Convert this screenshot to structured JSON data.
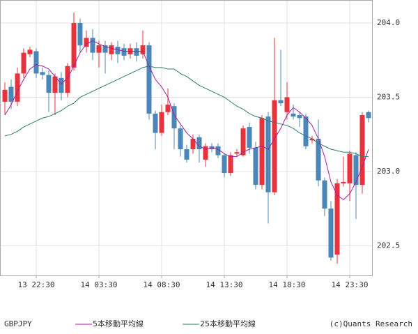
{
  "chart_data": {
    "type": "candlestick",
    "symbol": "GBPJPY",
    "credit": "(c)Quants Research",
    "categories": [
      null,
      null,
      null,
      null,
      null,
      "13 22:30",
      null,
      null,
      null,
      null,
      null,
      null,
      null,
      null,
      null,
      "14 03:30",
      null,
      null,
      null,
      null,
      null,
      null,
      null,
      null,
      null,
      "14 08:30",
      null,
      null,
      null,
      null,
      null,
      null,
      null,
      null,
      null,
      "14 13:30",
      null,
      null,
      null,
      null,
      null,
      null,
      null,
      null,
      null,
      "14 18:30",
      null,
      null,
      null,
      null,
      null,
      null,
      null,
      null,
      null,
      "14 23:30",
      null,
      null,
      null
    ],
    "open": [
      203.47,
      203.57,
      203.47,
      203.66,
      203.79,
      203.81,
      203.67,
      203.65,
      203.53,
      203.63,
      203.53,
      203.7,
      204.0,
      203.84,
      203.9,
      203.8,
      203.85,
      203.79,
      203.84,
      203.83,
      203.79,
      203.83,
      203.79,
      203.85,
      203.39,
      203.26,
      203.4,
      203.44,
      203.29,
      203.15,
      203.15,
      203.23,
      203.08,
      203.17,
      203.17,
      203.11,
      202.99,
      203.12,
      203.11,
      203.3,
      203.16,
      202.91,
      203.37,
      202.86,
      203.48,
      203.4,
      203.39,
      203.38,
      203.37,
      203.21,
      203.22,
      202.94,
      202.75,
      202.44,
      202.92,
      202.92,
      203.11,
      202.91,
      203.4
    ],
    "high": [
      203.6,
      203.62,
      203.7,
      203.83,
      203.84,
      203.83,
      203.7,
      203.68,
      203.66,
      203.67,
      203.73,
      204.07,
      204.03,
      203.95,
      203.96,
      203.88,
      203.88,
      203.87,
      203.88,
      203.86,
      203.86,
      203.87,
      203.95,
      203.87,
      203.41,
      203.45,
      203.56,
      203.46,
      203.31,
      203.18,
      203.25,
      203.25,
      203.19,
      203.19,
      203.19,
      203.12,
      203.13,
      203.15,
      203.31,
      203.33,
      203.2,
      203.38,
      203.4,
      203.9,
      203.82,
      203.6,
      203.45,
      203.4,
      203.39,
      203.24,
      203.35,
      202.96,
      202.8,
      202.95,
      203.1,
      203.14,
      203.13,
      203.4,
      203.41
    ],
    "low": [
      203.38,
      203.42,
      203.44,
      203.63,
      203.77,
      203.63,
      203.62,
      203.4,
      203.38,
      203.48,
      203.5,
      203.68,
      203.8,
      203.8,
      203.75,
      203.7,
      203.66,
      203.75,
      203.73,
      203.75,
      203.76,
      203.74,
      203.76,
      203.35,
      203.15,
      203.24,
      203.38,
      203.15,
      203.1,
      203.06,
      203.12,
      203.06,
      203.03,
      203.13,
      203.09,
      202.96,
      202.97,
      203.1,
      203.1,
      203.12,
      202.88,
      202.88,
      202.65,
      202.84,
      203.44,
      203.35,
      203.35,
      203.3,
      203.15,
      203.19,
      202.9,
      202.7,
      202.4,
      202.38,
      202.9,
      202.8,
      202.68,
      202.85,
      203.33
    ],
    "close": [
      203.55,
      203.47,
      203.66,
      203.8,
      203.82,
      203.66,
      203.65,
      203.53,
      203.64,
      203.53,
      203.71,
      204.0,
      203.85,
      203.9,
      203.8,
      203.85,
      203.8,
      203.85,
      203.79,
      203.78,
      203.83,
      203.78,
      203.85,
      203.39,
      203.26,
      203.4,
      203.45,
      203.29,
      203.15,
      203.08,
      203.22,
      203.15,
      203.17,
      203.15,
      203.11,
      202.99,
      203.11,
      203.13,
      203.29,
      203.16,
      202.91,
      203.36,
      202.86,
      203.48,
      203.46,
      203.5,
      203.37,
      203.36,
      203.17,
      203.22,
      202.94,
      202.75,
      202.42,
      202.92,
      202.93,
      203.12,
      202.91,
      203.38,
      203.36
    ],
    "up_color": "#e8323c",
    "down_color": "#4a86b8",
    "series": [
      {
        "name": "5本移動平均線",
        "color": "#a020a0",
        "values": [
          203.38,
          203.45,
          203.54,
          203.62,
          203.69,
          203.72,
          203.71,
          203.69,
          203.64,
          203.59,
          203.63,
          203.71,
          203.8,
          203.86,
          203.88,
          203.86,
          203.84,
          203.83,
          203.82,
          203.81,
          203.81,
          203.81,
          203.81,
          203.71,
          203.62,
          203.57,
          203.5,
          203.38,
          203.32,
          203.26,
          203.22,
          203.17,
          203.15,
          203.16,
          203.15,
          203.12,
          203.1,
          203.1,
          203.13,
          203.15,
          203.16,
          203.17,
          203.15,
          203.22,
          203.29,
          203.38,
          203.43,
          203.4,
          203.36,
          203.31,
          203.22,
          203.1,
          202.93,
          202.84,
          202.81,
          202.85,
          202.93,
          203.03,
          203.15
        ]
      },
      {
        "name": "25本移動平均線",
        "color": "#2e7d6e",
        "values": [
          203.24,
          203.25,
          203.27,
          203.3,
          203.32,
          203.34,
          203.36,
          203.37,
          203.39,
          203.41,
          203.44,
          203.46,
          203.5,
          203.52,
          203.54,
          203.56,
          203.58,
          203.6,
          203.62,
          203.64,
          203.66,
          203.68,
          203.7,
          203.71,
          203.7,
          203.7,
          203.69,
          203.69,
          203.66,
          203.64,
          203.61,
          203.58,
          203.56,
          203.54,
          203.52,
          203.5,
          203.47,
          203.44,
          203.42,
          203.39,
          203.37,
          203.36,
          203.34,
          203.33,
          203.32,
          203.31,
          203.29,
          203.26,
          203.24,
          203.22,
          203.19,
          203.17,
          203.15,
          203.14,
          203.13,
          203.13,
          203.12,
          203.1,
          203.1
        ]
      }
    ],
    "ylim": [
      202.3,
      204.155
    ],
    "yticks": [
      202.5,
      {
        "value": 203,
        "label": "203.0"
      },
      203.5,
      {
        "value": 204,
        "label": "204.0"
      }
    ],
    "grid": true
  }
}
